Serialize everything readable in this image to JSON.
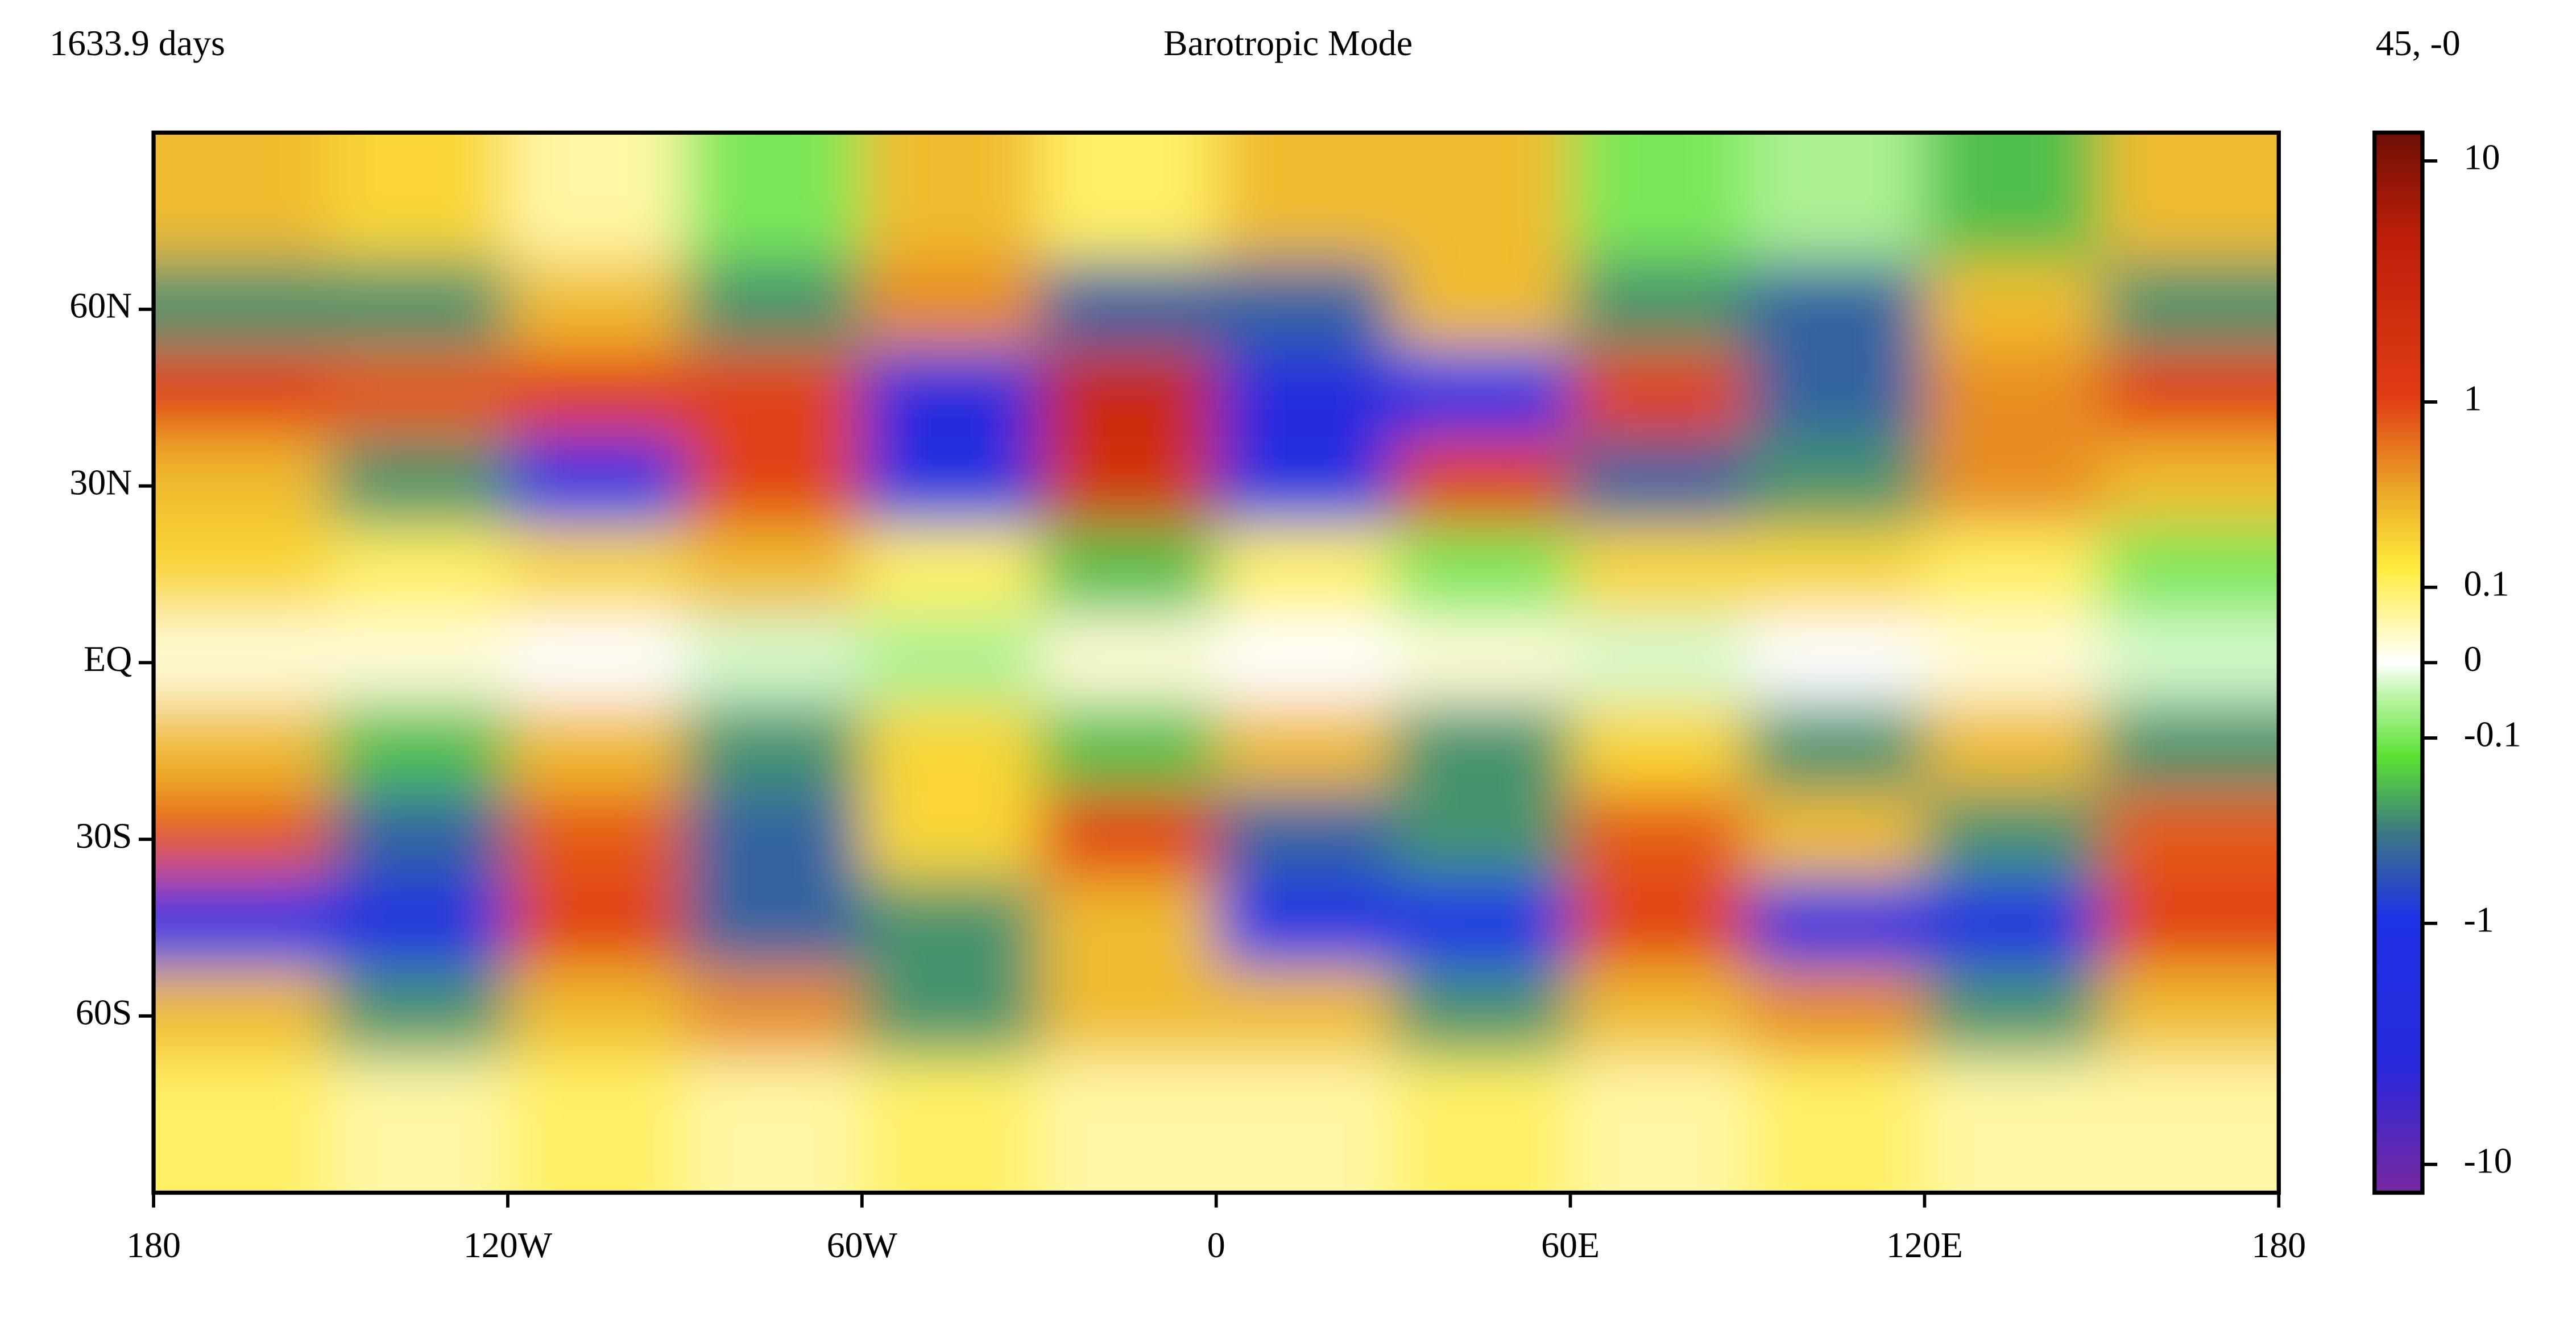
{
  "chart_data": {
    "type": "heatmap",
    "title": "Barotropic Mode",
    "time_label": "1633.9 days",
    "point_label": "45, -0",
    "x": [
      -165,
      -135,
      -105,
      -75,
      -45,
      -15,
      15,
      45,
      75,
      105,
      135,
      165
    ],
    "y": [
      75,
      60,
      45,
      30,
      15,
      0,
      -15,
      -30,
      -45,
      -60,
      -75
    ],
    "z": [
      [
        0.3,
        0.2,
        0.05,
        -0.1,
        0.3,
        0.1,
        0.3,
        0.3,
        -0.1,
        -0.05,
        -0.2,
        0.3
      ],
      [
        -0.3,
        -0.3,
        0.3,
        -0.3,
        0.5,
        -0.5,
        -0.5,
        0.3,
        -0.3,
        -0.5,
        0.3,
        -0.3
      ],
      [
        1,
        0.8,
        1,
        1,
        -3,
        3,
        -3,
        -1,
        1,
        -0.5,
        0.5,
        1
      ],
      [
        0.3,
        -0.3,
        -1,
        1,
        -2,
        2,
        -2,
        1,
        -0.5,
        -0.3,
        0.5,
        0.3
      ],
      [
        0.2,
        0.1,
        0.2,
        0.3,
        0.1,
        -0.2,
        0.1,
        -0.1,
        0.2,
        0.2,
        0.1,
        -0.1
      ],
      [
        0.02,
        0.02,
        0,
        -0.02,
        -0.05,
        0.02,
        0,
        0.02,
        -0.02,
        0,
        0.02,
        -0.02
      ],
      [
        0.3,
        -0.2,
        0.3,
        -0.3,
        0.2,
        -0.2,
        0.3,
        -0.3,
        0.2,
        -0.3,
        0.3,
        -0.3
      ],
      [
        0.8,
        -0.5,
        0.8,
        -0.5,
        0.2,
        1,
        -0.5,
        -0.3,
        0.8,
        0.3,
        -0.3,
        0.8
      ],
      [
        -1,
        -2,
        1,
        -0.5,
        -0.3,
        0.3,
        -1,
        -1,
        1,
        -2,
        -2,
        1
      ],
      [
        0.3,
        -0.3,
        0.3,
        0.5,
        -0.3,
        0.3,
        0.3,
        -0.3,
        0.3,
        0.5,
        -0.3,
        0.3
      ],
      [
        0.1,
        0.05,
        0.1,
        0.05,
        0.1,
        0.05,
        0.05,
        0.1,
        0.05,
        0.1,
        0.05,
        0.05
      ]
    ],
    "xlim": [
      -180,
      180
    ],
    "xticks": [
      {
        "value": -180,
        "label": "180"
      },
      {
        "value": -120,
        "label": "120W"
      },
      {
        "value": -60,
        "label": "60W"
      },
      0,
      {
        "value": 60,
        "label": "60E"
      },
      {
        "value": 120,
        "label": "120E"
      },
      180
    ],
    "ylim": [
      -90,
      90
    ],
    "yticks": [
      {
        "value": 60,
        "label": "60N"
      },
      {
        "value": 30,
        "label": "30N"
      },
      {
        "value": 0,
        "label": "EQ"
      },
      {
        "value": -30,
        "label": "30S"
      },
      {
        "value": -60,
        "label": "60S"
      }
    ],
    "colorscale": "symlog",
    "linthresh": 0.1,
    "clim": [
      -13,
      13
    ],
    "cticks": [
      10,
      1,
      0.1,
      0,
      -0.1,
      -1,
      -10
    ]
  }
}
